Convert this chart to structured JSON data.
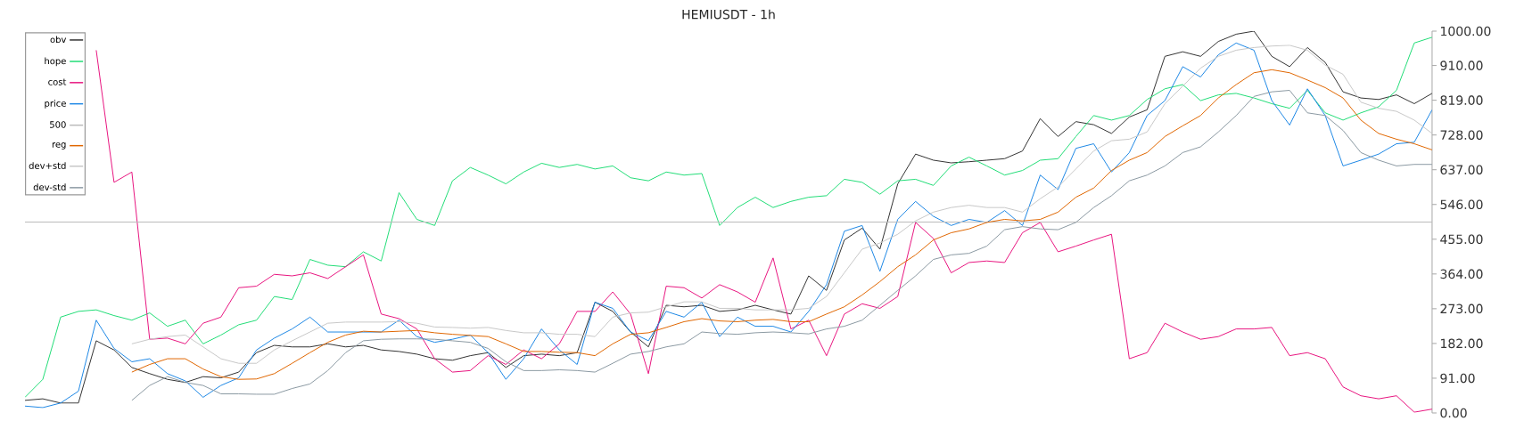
{
  "chart_data": {
    "type": "line",
    "title": "HEMIUSDT - 1h",
    "categories": [
      null,
      null,
      null,
      null,
      null,
      null,
      null,
      null,
      null,
      null,
      null,
      null,
      null,
      null,
      null,
      null,
      null,
      null,
      null,
      null,
      null,
      null,
      null,
      null,
      null,
      null,
      null,
      null,
      null,
      null,
      null,
      null,
      null,
      null,
      null,
      null,
      null,
      null,
      null,
      null,
      null,
      null,
      null,
      null,
      null,
      null,
      null,
      null,
      null,
      null,
      null,
      null,
      null,
      null,
      null,
      null,
      null,
      null,
      null,
      null,
      null,
      null,
      null,
      null,
      null,
      null,
      null,
      null,
      null,
      null,
      null,
      null,
      null,
      null,
      null,
      null,
      null,
      null,
      null,
      null
    ],
    "series": [
      {
        "name": "obv",
        "color": "#333333",
        "values": [
          33,
          37,
          26,
          26,
          189,
          165,
          119,
          103,
          88,
          80,
          95,
          92,
          107,
          158,
          177,
          173,
          173,
          181,
          173,
          177,
          165,
          161,
          154,
          142,
          138,
          150,
          158,
          119,
          150,
          154,
          150,
          158,
          290,
          266,
          212,
          173,
          282,
          278,
          282,
          266,
          270,
          282,
          270,
          259,
          359,
          321,
          453,
          484,
          429,
          600,
          678,
          662,
          655,
          658,
          662,
          666,
          686,
          771,
          724,
          763,
          755,
          732,
          775,
          794,
          934,
          946,
          934,
          973,
          992,
          1000,
          934,
          907,
          957,
          918,
          841,
          825,
          821,
          833,
          810,
          837
        ]
      },
      {
        "name": "hope",
        "color": "#22dd77",
        "values": [
          41,
          88,
          251,
          266,
          270,
          255,
          243,
          262,
          227,
          243,
          181,
          204,
          231,
          243,
          305,
          297,
          402,
          387,
          383,
          422,
          398,
          577,
          507,
          491,
          608,
          643,
          623,
          600,
          631,
          654,
          643,
          651,
          639,
          647,
          616,
          608,
          631,
          623,
          627,
          491,
          538,
          565,
          538,
          554,
          565,
          569,
          612,
          604,
          573,
          608,
          612,
          596,
          647,
          670,
          647,
          623,
          635,
          662,
          666,
          724,
          779,
          767,
          779,
          821,
          849,
          860,
          818,
          833,
          837,
          825,
          810,
          798,
          845,
          786,
          767,
          786,
          802,
          845,
          969,
          984
        ]
      },
      {
        "name": "cost",
        "color": "#e8157f",
        "values": [
          null,
          null,
          null,
          null,
          950,
          604,
          631,
          193,
          196,
          181,
          235,
          251,
          328,
          332,
          363,
          359,
          367,
          352,
          383,
          414,
          259,
          247,
          220,
          142,
          107,
          111,
          150,
          127,
          165,
          142,
          181,
          266,
          266,
          317,
          259,
          103,
          332,
          328,
          301,
          336,
          317,
          290,
          406,
          220,
          243,
          150,
          259,
          286,
          274,
          305,
          499,
          457,
          367,
          394,
          398,
          394,
          472,
          499,
          422,
          437,
          453,
          468,
          142,
          158,
          235,
          212,
          193,
          200,
          220,
          220,
          224,
          150,
          158,
          142,
          68,
          45,
          37,
          45,
          2,
          10
        ]
      },
      {
        "name": "price",
        "color": "#1e88e5",
        "values": [
          18,
          14,
          26,
          57,
          243,
          169,
          134,
          142,
          103,
          84,
          41,
          72,
          92,
          165,
          196,
          220,
          251,
          212,
          212,
          212,
          212,
          243,
          200,
          185,
          193,
          204,
          158,
          88,
          142,
          220,
          165,
          127,
          290,
          274,
          212,
          189,
          266,
          251,
          290,
          200,
          251,
          227,
          227,
          212,
          266,
          336,
          476,
          491,
          371,
          507,
          554,
          515,
          491,
          507,
          499,
          530,
          491,
          623,
          585,
          693,
          705,
          631,
          682,
          779,
          818,
          907,
          880,
          938,
          969,
          950,
          818,
          754,
          849,
          779,
          647,
          662,
          678,
          705,
          709,
          794
        ]
      },
      {
        "name": "500",
        "color": "#bbbbbb",
        "values": [
          500,
          500,
          500,
          500,
          500,
          500,
          500,
          500,
          500,
          500,
          500,
          500,
          500,
          500,
          500,
          500,
          500,
          500,
          500,
          500,
          500,
          500,
          500,
          500,
          500,
          500,
          500,
          500,
          500,
          500,
          500,
          500,
          500,
          500,
          500,
          500,
          500,
          500,
          500,
          500,
          500,
          500,
          500,
          500,
          500,
          500,
          500,
          500,
          500,
          500,
          500,
          500,
          500,
          500,
          500,
          500,
          500,
          500,
          500,
          500,
          500,
          500,
          500,
          500,
          500,
          500,
          500,
          500,
          500,
          500,
          500,
          500,
          500,
          500,
          500,
          500,
          500,
          500,
          500,
          500
        ]
      },
      {
        "name": "reg",
        "color": "#e06600",
        "values": [
          null,
          null,
          null,
          null,
          null,
          null,
          107,
          127,
          142,
          142,
          115,
          95,
          88,
          89,
          103,
          130,
          158,
          185,
          204,
          214,
          212,
          214,
          216,
          210,
          206,
          203,
          200,
          181,
          161,
          161,
          159,
          158,
          150,
          181,
          206,
          210,
          224,
          239,
          247,
          241,
          239,
          243,
          245,
          239,
          239,
          259,
          278,
          309,
          344,
          383,
          414,
          453,
          472,
          482,
          499,
          507,
          503,
          507,
          526,
          565,
          589,
          635,
          662,
          682,
          724,
          752,
          779,
          825,
          860,
          891,
          899,
          891,
          872,
          852,
          825,
          767,
          732,
          717,
          705,
          689
        ]
      },
      {
        "name": "dev+std",
        "color": "#c8c8c8",
        "values": [
          null,
          null,
          null,
          null,
          null,
          null,
          181,
          193,
          200,
          204,
          173,
          142,
          130,
          130,
          165,
          189,
          212,
          235,
          238,
          238,
          238,
          239,
          235,
          225,
          224,
          222,
          224,
          216,
          210,
          210,
          206,
          206,
          200,
          251,
          262,
          264,
          278,
          291,
          291,
          274,
          274,
          270,
          270,
          270,
          274,
          305,
          367,
          429,
          445,
          468,
          503,
          526,
          538,
          544,
          538,
          538,
          526,
          561,
          592,
          639,
          686,
          713,
          717,
          736,
          810,
          856,
          903,
          934,
          950,
          957,
          961,
          963,
          950,
          911,
          887,
          814,
          798,
          790,
          767,
          732
        ]
      },
      {
        "name": "dev-std",
        "color": "#8c9aa3",
        "values": [
          null,
          null,
          null,
          null,
          null,
          null,
          33,
          72,
          95,
          80,
          72,
          50,
          50,
          49,
          49,
          64,
          76,
          111,
          158,
          189,
          193,
          194,
          194,
          193,
          189,
          185,
          169,
          134,
          111,
          111,
          113,
          111,
          107,
          130,
          154,
          161,
          173,
          181,
          212,
          208,
          206,
          210,
          212,
          210,
          207,
          220,
          227,
          243,
          282,
          321,
          359,
          402,
          414,
          418,
          437,
          480,
          488,
          482,
          480,
          499,
          538,
          569,
          608,
          623,
          647,
          682,
          697,
          736,
          779,
          829,
          841,
          845,
          786,
          779,
          740,
          682,
          662,
          647,
          651,
          651
        ]
      }
    ],
    "ylim": [
      0,
      1000
    ],
    "yticks": [
      {
        "value": 0,
        "label": "0.00"
      },
      {
        "value": 91,
        "label": "91.00"
      },
      {
        "value": 182,
        "label": "182.00"
      },
      {
        "value": 273,
        "label": "273.00"
      },
      {
        "value": 364,
        "label": "364.00"
      },
      {
        "value": 455,
        "label": "455.00"
      },
      {
        "value": 546,
        "label": "546.00"
      },
      {
        "value": 637,
        "label": "637.00"
      },
      {
        "value": 728,
        "label": "728.00"
      },
      {
        "value": 819,
        "label": "819.00"
      },
      {
        "value": 910,
        "label": "910.00"
      },
      {
        "value": 1000,
        "label": "1000.00"
      }
    ],
    "legend": "top left",
    "tick_labels": "y"
  }
}
